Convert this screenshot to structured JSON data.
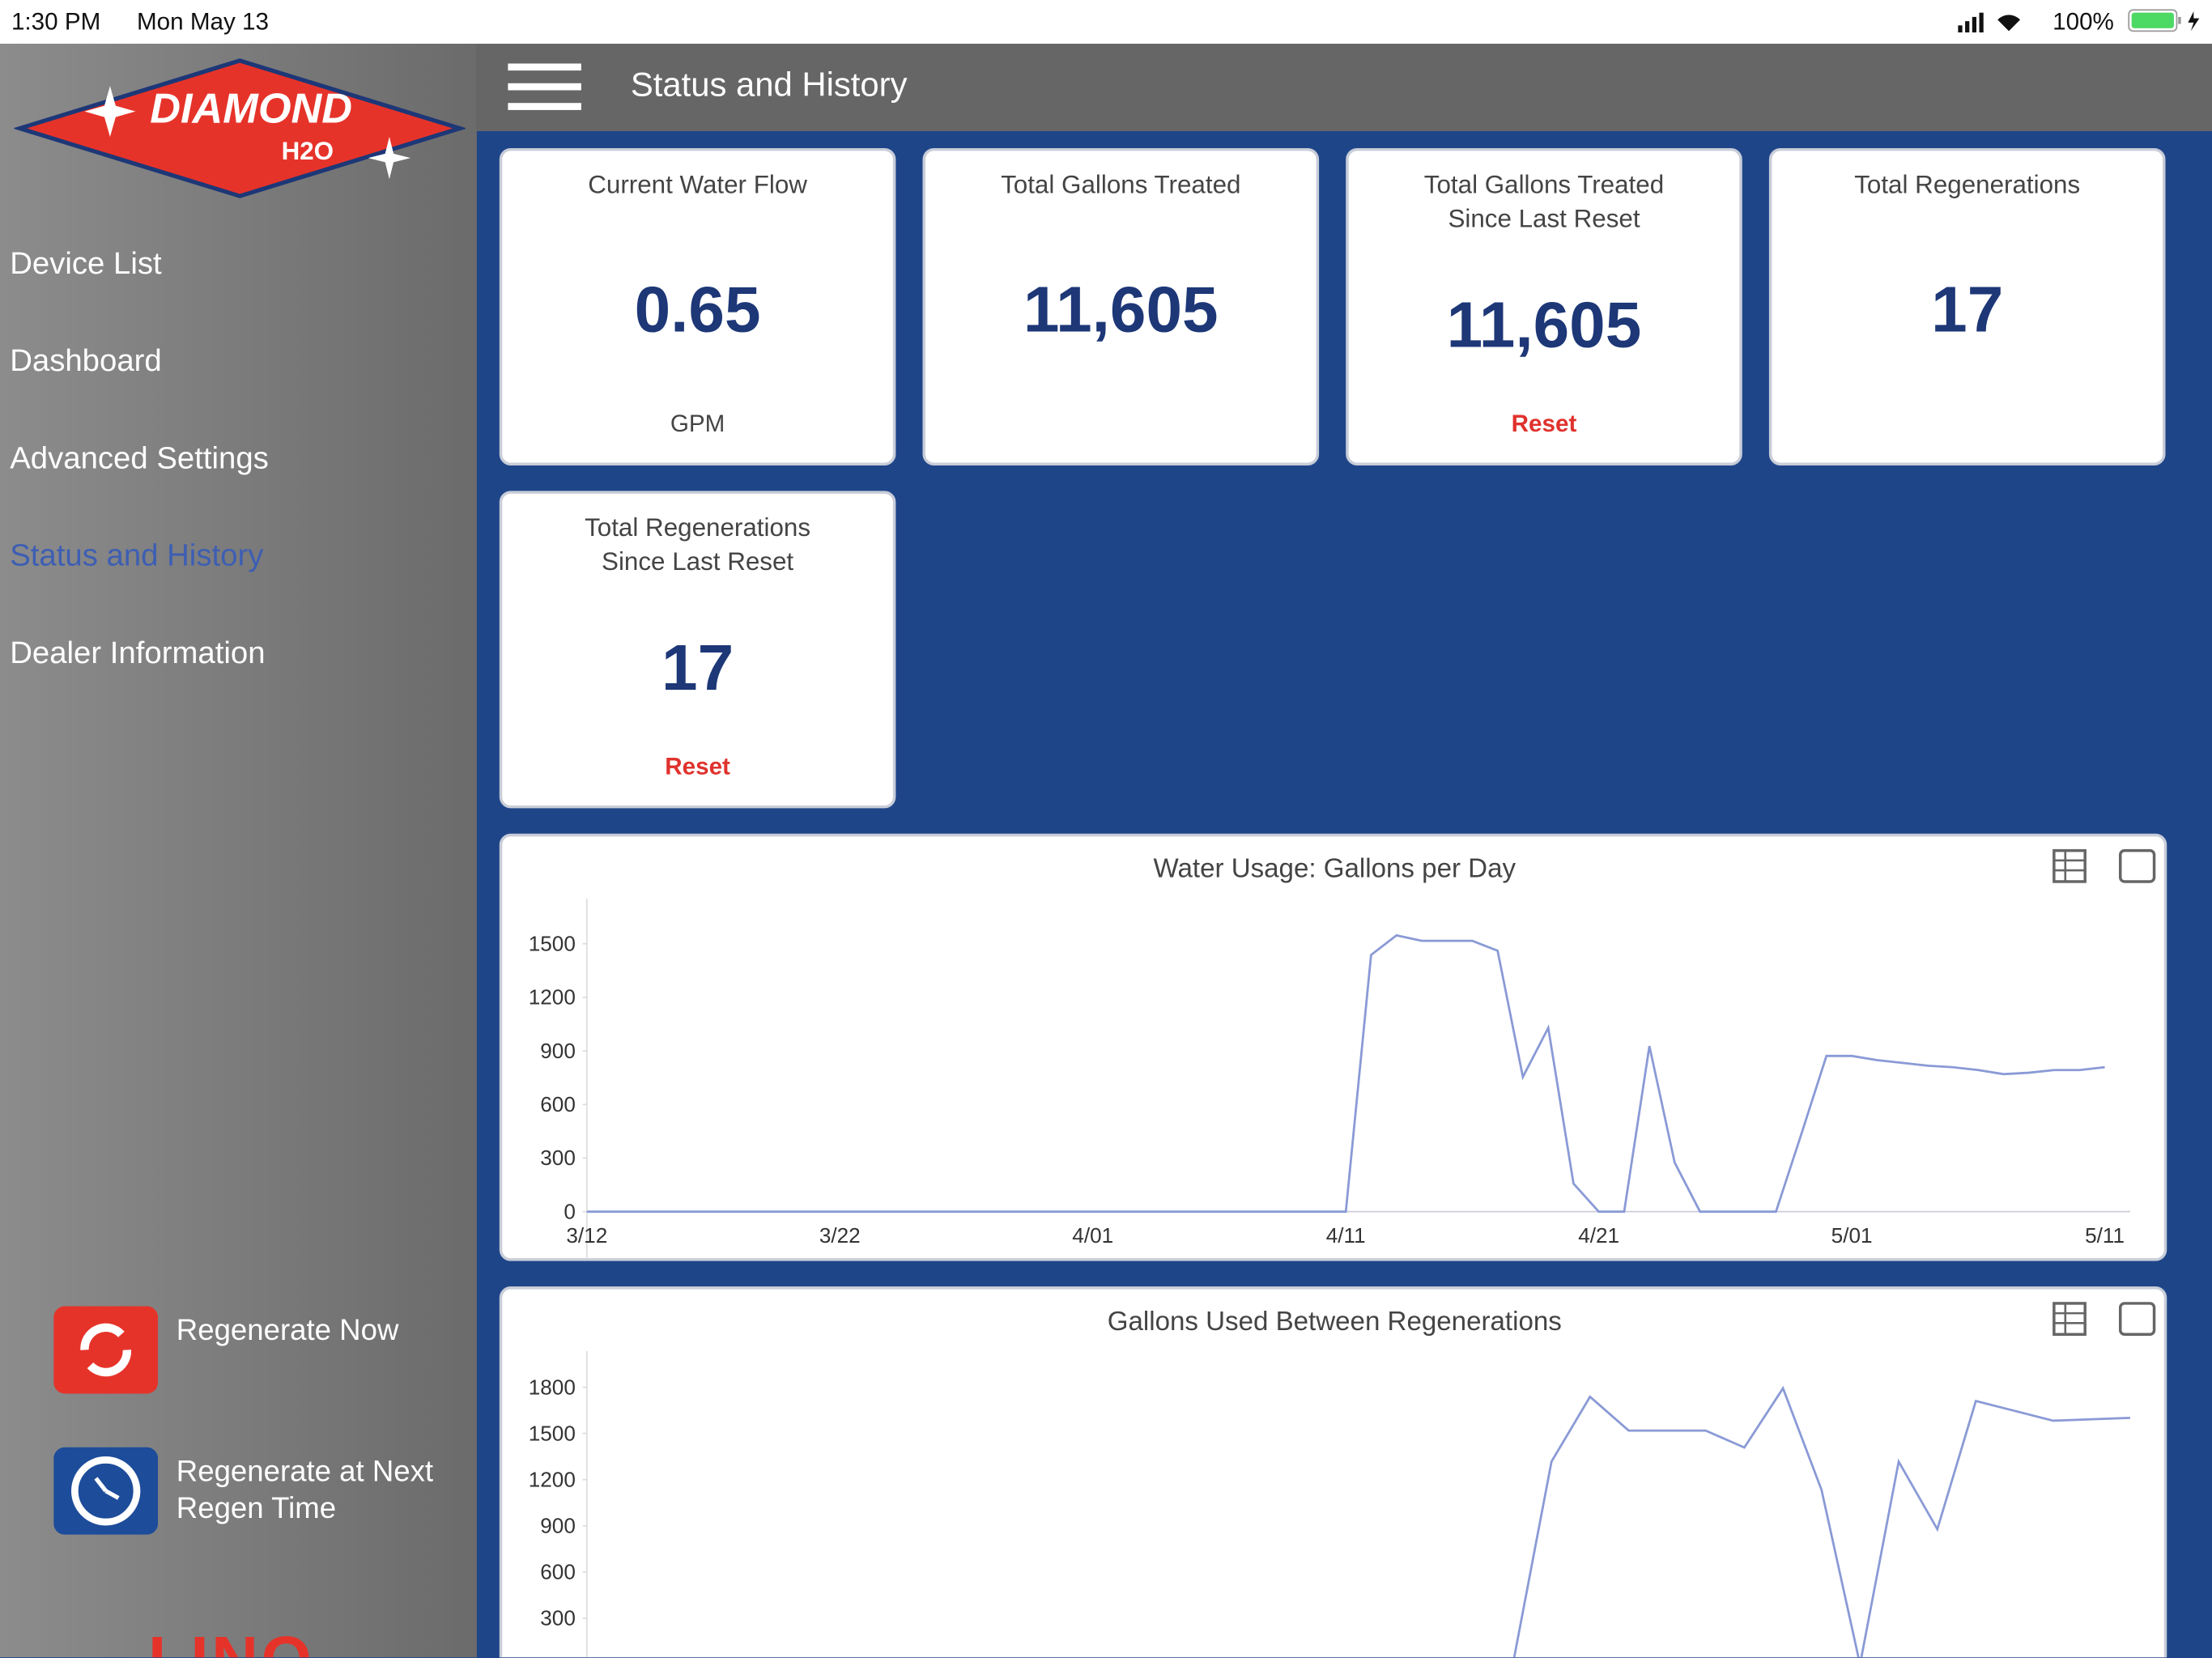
{
  "status_bar": {
    "time": "1:30 PM",
    "date": "Mon May 13",
    "battery": "100%"
  },
  "sidebar": {
    "logo": "DIAMOND",
    "logo_sub": "H2O",
    "menu": [
      "Device List",
      "Dashboard",
      "Advanced Settings",
      "Status and History",
      "Dealer Information"
    ],
    "actions": [
      "Regenerate Now",
      "Regenerate at Next Regen Time"
    ],
    "brand": "LINQ"
  },
  "header": {
    "title": "Status and History"
  },
  "cards": [
    {
      "title": "Current Water Flow",
      "value": "0.65",
      "footer": "GPM"
    },
    {
      "title": "Total Gallons Treated",
      "value": "11,605"
    },
    {
      "title": "Total Gallons Treated Since Last Reset",
      "value": "11,605",
      "footer": "Reset"
    },
    {
      "title": "Total Regenerations",
      "value": "17"
    },
    {
      "title": "Total Regenerations Since Last Reset",
      "value": "17",
      "footer": "Reset"
    }
  ],
  "charts": [
    {
      "type": "line",
      "title": "Water Usage: Gallons per Day",
      "color": "#8a9ad6",
      "categories": [
        "3/12",
        null,
        null,
        null,
        null,
        null,
        null,
        null,
        null,
        null,
        "3/22",
        null,
        null,
        null,
        null,
        null,
        null,
        null,
        null,
        null,
        "4/01",
        null,
        null,
        null,
        null,
        null,
        null,
        null,
        null,
        null,
        "4/11",
        null,
        null,
        null,
        null,
        null,
        null,
        null,
        null,
        null,
        "4/21",
        null,
        null,
        null,
        null,
        null,
        null,
        null,
        null,
        null,
        "5/01",
        null,
        null,
        null,
        null,
        null,
        null,
        null,
        null,
        null,
        "5/11"
      ],
      "values": [
        0,
        0,
        0,
        0,
        0,
        0,
        0,
        0,
        0,
        0,
        0,
        0,
        0,
        0,
        0,
        0,
        0,
        0,
        0,
        0,
        0,
        0,
        0,
        0,
        0,
        0,
        0,
        0,
        0,
        0,
        0,
        1437,
        1547,
        1516,
        1516,
        1516,
        1461,
        754,
        1029,
        157,
        0,
        0,
        927,
        275,
        0,
        0,
        0,
        0,
        432,
        872,
        872,
        848,
        833,
        817,
        809,
        793,
        770,
        778,
        793,
        793,
        809
      ],
      "ylim": [
        0,
        1690
      ],
      "yticks": [
        0,
        300,
        600,
        900,
        1200,
        1500
      ]
    },
    {
      "type": "line",
      "title": "Gallons Used Between Regenerations",
      "color": "#8a9ad6",
      "categories": [
        null,
        null,
        null,
        null,
        null,
        null,
        null,
        null,
        null,
        null,
        null,
        null,
        null,
        null,
        null,
        null,
        null,
        null,
        null,
        null,
        null,
        null,
        null,
        null,
        null,
        null,
        null,
        null,
        null,
        null,
        null,
        null,
        null,
        null,
        null,
        null,
        null,
        null,
        null,
        null,
        null
      ],
      "values": [
        0,
        0,
        0,
        0,
        0,
        0,
        0,
        0,
        0,
        0,
        0,
        0,
        0,
        0,
        0,
        0,
        0,
        0,
        0,
        0,
        0,
        0,
        0,
        0,
        0,
        1317,
        1738,
        1519,
        1519,
        1519,
        1409,
        1793,
        1134,
        0,
        1317,
        878,
        1711,
        1647,
        1583,
        1592,
        1601
      ],
      "ylim": [
        0,
        1960
      ],
      "yticks": [
        300,
        600,
        900,
        1200,
        1500,
        1800
      ]
    }
  ]
}
